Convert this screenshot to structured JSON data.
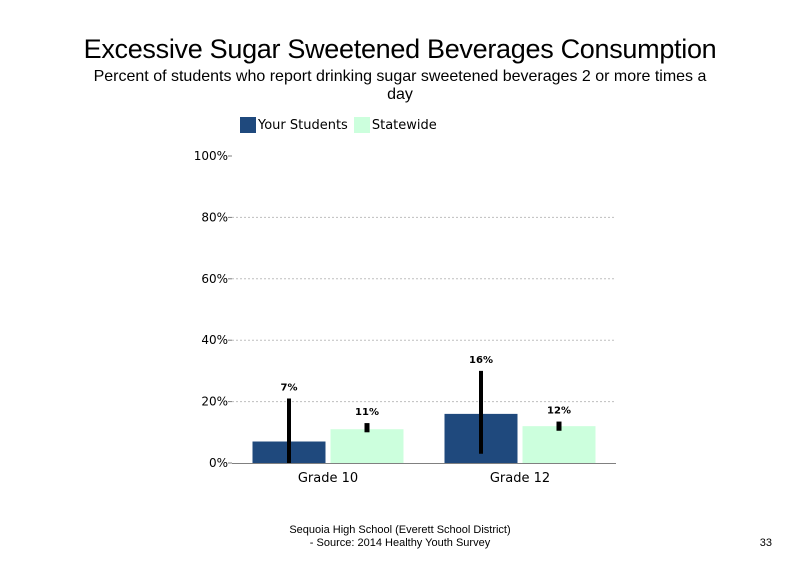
{
  "title": "Excessive Sugar Sweetened Beverages Consumption",
  "subtitle": "Percent of students who report drinking sugar sweetened beverages 2 or more times a day",
  "footer": {
    "line1": "Sequoia High School (Everett School District)",
    "line2": "- Source: 2014 Healthy Youth Survey"
  },
  "page_number": "33",
  "colors": {
    "your_students": "#1f497d",
    "statewide": "#ccffdd",
    "error_bar": "#000000",
    "gridline": "#bfbfbf"
  },
  "chart_data": {
    "type": "bar",
    "categories": [
      "Grade 10",
      "Grade 12"
    ],
    "series": [
      {
        "name": "Your Students",
        "values": [
          7,
          16
        ],
        "labels": [
          "7%",
          "16%"
        ],
        "error_low": [
          0,
          3
        ],
        "error_high": [
          21,
          30
        ]
      },
      {
        "name": "Statewide",
        "values": [
          11,
          12
        ],
        "labels": [
          "11%",
          "12%"
        ],
        "error_low": [
          10,
          10.5
        ],
        "error_high": [
          13,
          13.5
        ]
      }
    ],
    "ylim": [
      0,
      100
    ],
    "yticks": [
      0,
      20,
      40,
      60,
      80,
      100
    ],
    "ytick_labels": [
      "0%",
      "20%",
      "40%",
      "60%",
      "80%",
      "100%"
    ],
    "grid": true,
    "legend_position": "top-left"
  }
}
